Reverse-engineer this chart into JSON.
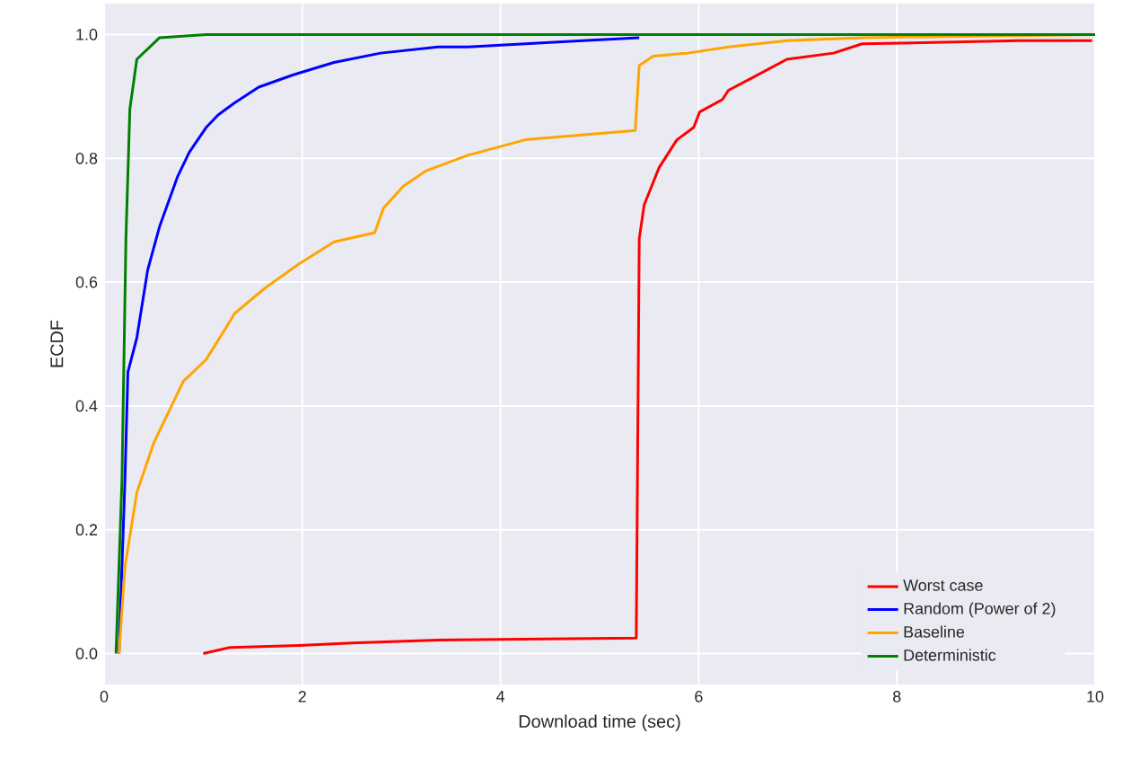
{
  "chart_data": {
    "type": "line",
    "xlabel": "Download time (sec)",
    "ylabel": "ECDF",
    "xlim": [
      0,
      10
    ],
    "ylim": [
      -0.05,
      1.05
    ],
    "xticks": [
      0,
      2,
      4,
      6,
      8,
      10
    ],
    "yticks": [
      {
        "value": 0,
        "label": "0.0"
      },
      {
        "value": 0.2,
        "label": "0.2"
      },
      {
        "value": 0.4,
        "label": "0.4"
      },
      {
        "value": 0.6,
        "label": "0.6"
      },
      {
        "value": 0.8,
        "label": "0.8"
      },
      {
        "value": 1,
        "label": "1.0"
      }
    ],
    "grid": true,
    "legend": "bottom right",
    "series": [
      {
        "name": "Worst case",
        "color": "#ff0000",
        "x": [
          1.0,
          1.27,
          1.97,
          2.5,
          3.37,
          5.37,
          5.4,
          5.45,
          5.6,
          5.78,
          5.95,
          6.01,
          6.24,
          6.3,
          6.54,
          6.89,
          7.36,
          7.65,
          9.23,
          9.97
        ],
        "values": [
          0.0,
          0.01,
          0.013,
          0.017,
          0.022,
          0.025,
          0.67,
          0.725,
          0.785,
          0.83,
          0.85,
          0.875,
          0.895,
          0.91,
          0.93,
          0.96,
          0.97,
          0.985,
          0.99,
          0.99
        ]
      },
      {
        "name": "Random (Power of 2)",
        "color": "#0000ff",
        "x": [
          0.15,
          0.21,
          0.24,
          0.33,
          0.44,
          0.56,
          0.74,
          0.86,
          1.03,
          1.15,
          1.32,
          1.56,
          1.91,
          2.32,
          2.79,
          3.37,
          3.67,
          4.83,
          5.4
        ],
        "values": [
          0.0,
          0.28,
          0.455,
          0.51,
          0.62,
          0.69,
          0.77,
          0.81,
          0.85,
          0.87,
          0.89,
          0.915,
          0.935,
          0.955,
          0.97,
          0.98,
          0.98,
          0.99,
          0.995
        ]
      },
      {
        "name": "Baseline",
        "color": "#ffa500",
        "x": [
          0.15,
          0.21,
          0.33,
          0.5,
          0.62,
          0.8,
          1.03,
          1.32,
          1.62,
          1.97,
          2.32,
          2.73,
          2.82,
          3.02,
          3.25,
          3.67,
          4.25,
          5.36,
          5.4,
          5.54,
          5.89,
          6.3,
          6.89,
          7.65,
          10
        ],
        "values": [
          0.0,
          0.14,
          0.26,
          0.34,
          0.38,
          0.44,
          0.475,
          0.55,
          0.59,
          0.63,
          0.665,
          0.68,
          0.72,
          0.755,
          0.78,
          0.805,
          0.83,
          0.845,
          0.95,
          0.965,
          0.97,
          0.98,
          0.99,
          0.995,
          1.0
        ]
      },
      {
        "name": "Deterministic",
        "color": "#008000",
        "x": [
          0.12,
          0.18,
          0.22,
          0.26,
          0.33,
          0.56,
          1.03,
          10
        ],
        "values": [
          0.0,
          0.28,
          0.67,
          0.88,
          0.96,
          0.995,
          1.0,
          1.0
        ]
      }
    ]
  }
}
